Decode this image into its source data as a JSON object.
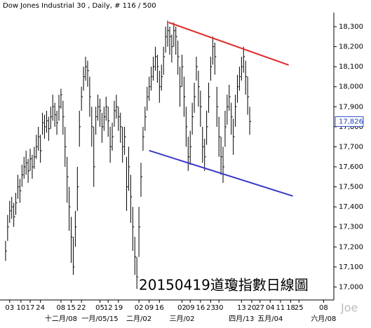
{
  "chart_data": {
    "type": "ohlc",
    "title": "Dow Jones Industrial 30 , Daily, # 116 / 500",
    "annotation": "20150419道瓊指數日線圖",
    "watermark": "Joe",
    "color": "#000000",
    "high": [
      17230,
      17360,
      17430,
      17450,
      17420,
      17470,
      17560,
      17540,
      17610,
      17650,
      17680,
      17640,
      17690,
      17660,
      17700,
      17760,
      17800,
      17760,
      17870,
      17860,
      17880,
      17850,
      17900,
      17960,
      17920,
      17880,
      17960,
      17990,
      17930,
      17800,
      17650,
      17500,
      17350,
      17250,
      17380,
      17600,
      17880,
      18000,
      18100,
      18150,
      18130,
      18050,
      17900,
      17800,
      17900,
      17960,
      17940,
      17870,
      17900,
      17950,
      17900,
      17800,
      17820,
      17930,
      17960,
      17900,
      17870,
      17800,
      17800,
      17650,
      17700,
      17560,
      17400,
      17250,
      17150,
      17400,
      17620,
      17800,
      17900,
      18000,
      18050,
      18100,
      18150,
      18200,
      18160,
      18080,
      18110,
      18200,
      18300,
      18330,
      18300,
      18260,
      18320,
      18300,
      18230,
      18100,
      18160,
      18050,
      17900,
      17750,
      17780,
      17920,
      18020,
      18150,
      18080,
      17980,
      17800,
      17740,
      17880,
      18020,
      18150,
      18250,
      18220,
      18000,
      17850,
      17750,
      17700,
      17880,
      17960,
      18010,
      17920,
      17840,
      17960,
      18060,
      18100,
      18150,
      18200,
      18130,
      18050,
      17900
    ],
    "low": [
      17130,
      17230,
      17320,
      17340,
      17300,
      17360,
      17440,
      17420,
      17500,
      17540,
      17560,
      17520,
      17580,
      17540,
      17590,
      17640,
      17680,
      17620,
      17760,
      17740,
      17770,
      17730,
      17790,
      17830,
      17800,
      17760,
      17830,
      17890,
      17760,
      17600,
      17420,
      17280,
      17120,
      17060,
      17200,
      17380,
      17700,
      17880,
      17980,
      18030,
      18000,
      17850,
      17700,
      17500,
      17760,
      17830,
      17800,
      17720,
      17780,
      17830,
      17750,
      17620,
      17680,
      17800,
      17840,
      17780,
      17720,
      17620,
      17660,
      17380,
      17480,
      17320,
      17180,
      17060,
      16990,
      17150,
      17450,
      17680,
      17780,
      17880,
      17930,
      17980,
      18030,
      18080,
      18020,
      17920,
      17980,
      18060,
      18170,
      18200,
      18160,
      18120,
      18200,
      18160,
      18060,
      17900,
      18000,
      17850,
      17700,
      17580,
      17610,
      17760,
      17870,
      18030,
      17900,
      17800,
      17620,
      17580,
      17710,
      17870,
      18030,
      18110,
      18060,
      17800,
      17650,
      17560,
      17520,
      17700,
      17810,
      17880,
      17760,
      17660,
      17800,
      17920,
      17980,
      18030,
      18070,
      17960,
      17860,
      17760
    ],
    "close": [
      17180,
      17300,
      17380,
      17400,
      17350,
      17420,
      17500,
      17480,
      17560,
      17600,
      17620,
      17580,
      17640,
      17600,
      17650,
      17700,
      17750,
      17680,
      17820,
      17800,
      17830,
      17790,
      17850,
      17900,
      17860,
      17820,
      17900,
      17960,
      17850,
      17700,
      17550,
      17400,
      17250,
      17100,
      17300,
      17500,
      17800,
      17950,
      18050,
      18100,
      18080,
      17950,
      17800,
      17600,
      17850,
      17900,
      17880,
      17800,
      17850,
      17900,
      17830,
      17700,
      17750,
      17880,
      17900,
      17850,
      17800,
      17700,
      17750,
      17500,
      17600,
      17450,
      17300,
      17150,
      17050,
      17300,
      17550,
      17750,
      17850,
      17950,
      18000,
      18050,
      18100,
      18150,
      18100,
      18000,
      18050,
      18150,
      18250,
      18280,
      18250,
      18200,
      18280,
      18250,
      18150,
      18000,
      18100,
      17950,
      17800,
      17650,
      17700,
      17850,
      17950,
      18100,
      18000,
      17900,
      17700,
      17650,
      17800,
      17950,
      18100,
      18200,
      18150,
      17900,
      17750,
      17650,
      17600,
      17800,
      17900,
      17950,
      17850,
      17750,
      17900,
      18000,
      18050,
      18100,
      18150,
      18050,
      17950,
      17826
    ],
    "last_price": {
      "value": 17826,
      "label": "17,826"
    },
    "trend_lines": [
      {
        "color": "#e02828",
        "x": [
          79.5,
          138
        ],
        "y": [
          18321,
          18108
        ]
      },
      {
        "color": "#3838c8",
        "x": [
          70,
          140
        ],
        "y": [
          17681,
          17454
        ]
      }
    ],
    "xlim": [
      -1,
      160
    ],
    "xticks": [
      {
        "value": 2,
        "label": "03"
      },
      {
        "value": 7.5,
        "label": "10"
      },
      {
        "value": 12,
        "label": "17"
      },
      {
        "value": 17,
        "label": "24"
      },
      {
        "value": 27,
        "label": "08"
      },
      {
        "value": 32,
        "label": "15"
      },
      {
        "value": 37,
        "label": "22"
      },
      {
        "value": 46,
        "label": "05"
      },
      {
        "value": 50,
        "label": "12"
      },
      {
        "value": 55,
        "label": "19"
      },
      {
        "value": 65,
        "label": "02"
      },
      {
        "value": 70,
        "label": "09"
      },
      {
        "value": 75,
        "label": "16"
      },
      {
        "value": 86,
        "label": "02"
      },
      {
        "value": 90,
        "label": "09"
      },
      {
        "value": 95,
        "label": "16"
      },
      {
        "value": 100,
        "label": "23"
      },
      {
        "value": 104,
        "label": "30"
      },
      {
        "value": 115,
        "label": "13"
      },
      {
        "value": 120,
        "label": "20"
      },
      {
        "value": 124,
        "label": "27"
      },
      {
        "value": 129,
        "label": "04"
      },
      {
        "value": 134,
        "label": "11"
      },
      {
        "value": 139,
        "label": "18"
      },
      {
        "value": 143,
        "label": "25"
      },
      {
        "value": 155,
        "label": "08"
      }
    ],
    "month_ticks": [
      {
        "value": 27,
        "label": "十二月/08"
      },
      {
        "value": 46,
        "label": "一月/05/15"
      },
      {
        "value": 65,
        "label": "二月/02"
      },
      {
        "value": 86,
        "label": "三月/02"
      },
      {
        "value": 115,
        "label": "四月/13"
      },
      {
        "value": 129,
        "label": "五月/04"
      },
      {
        "value": 155,
        "label": "六月/08"
      }
    ],
    "ylim": [
      16935,
      18370
    ],
    "yticks": [
      {
        "value": 17000,
        "label": "17,000"
      },
      {
        "value": 17100,
        "label": "17,100"
      },
      {
        "value": 17200,
        "label": "17,200"
      },
      {
        "value": 17300,
        "label": "17,300"
      },
      {
        "value": 17400,
        "label": "17,400"
      },
      {
        "value": 17500,
        "label": "17,500"
      },
      {
        "value": 17600,
        "label": "17,600"
      },
      {
        "value": 17700,
        "label": "17,700"
      },
      {
        "value": 17800,
        "label": "17,800"
      },
      {
        "value": 17900,
        "label": "17,900"
      },
      {
        "value": 18000,
        "label": "18,000"
      },
      {
        "value": 18100,
        "label": "18,100"
      },
      {
        "value": 18200,
        "label": "18,200"
      },
      {
        "value": 18300,
        "label": "18,300"
      }
    ]
  }
}
